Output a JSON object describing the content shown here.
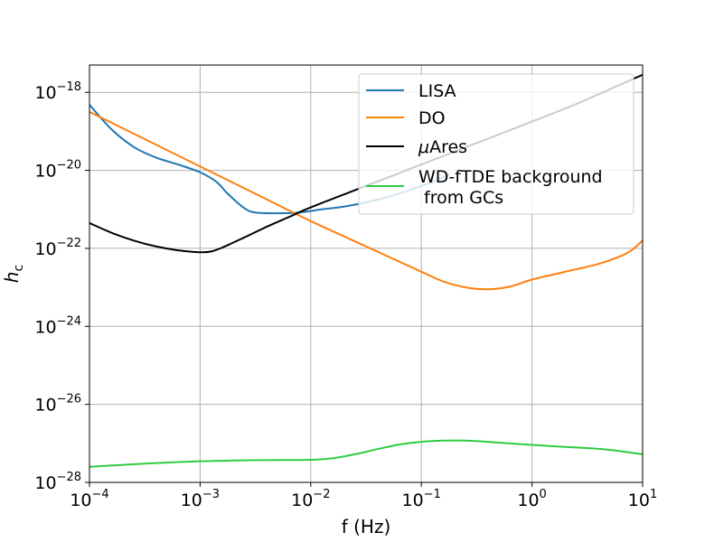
{
  "chart_data": {
    "type": "line",
    "title": "",
    "xlabel": "f (Hz)",
    "ylabel_main": "h",
    "ylabel_sub": "c",
    "xscale": "log",
    "yscale": "log",
    "xlim_exp": [
      -4,
      1
    ],
    "ylim_exp": [
      -28,
      -17.3
    ],
    "grid": true,
    "legend_position": "top-right",
    "x_ticks": [
      {
        "base": "10",
        "exp": "−4",
        "value_exp": -4
      },
      {
        "base": "10",
        "exp": "−3",
        "value_exp": -3
      },
      {
        "base": "10",
        "exp": "−2",
        "value_exp": -2
      },
      {
        "base": "10",
        "exp": "−1",
        "value_exp": -1
      },
      {
        "base": "10",
        "exp": "0",
        "value_exp": 0
      },
      {
        "base": "10",
        "exp": "1",
        "value_exp": 1
      }
    ],
    "y_ticks": [
      {
        "base": "10",
        "exp": "−18",
        "value_exp": -18
      },
      {
        "base": "10",
        "exp": "−20",
        "value_exp": -20
      },
      {
        "base": "10",
        "exp": "−22",
        "value_exp": -22
      },
      {
        "base": "10",
        "exp": "−24",
        "value_exp": -24
      },
      {
        "base": "10",
        "exp": "−26",
        "value_exp": -26
      },
      {
        "base": "10",
        "exp": "−28",
        "value_exp": -28
      }
    ],
    "series": [
      {
        "name": "LISA",
        "color": "#1f77b4",
        "points_log10": [
          [
            -4.0,
            -18.32
          ],
          [
            -3.8,
            -18.95
          ],
          [
            -3.6,
            -19.4
          ],
          [
            -3.4,
            -19.67
          ],
          [
            -3.2,
            -19.85
          ],
          [
            -3.0,
            -20.05
          ],
          [
            -2.85,
            -20.3
          ],
          [
            -2.75,
            -20.6
          ],
          [
            -2.6,
            -20.97
          ],
          [
            -2.5,
            -21.08
          ],
          [
            -2.3,
            -21.1
          ],
          [
            -2.1,
            -21.08
          ],
          [
            -1.9,
            -21.0
          ],
          [
            -1.7,
            -20.93
          ],
          [
            -1.5,
            -20.82
          ],
          [
            -1.3,
            -20.68
          ],
          [
            -1.1,
            -20.5
          ],
          [
            -1.0,
            -20.4
          ],
          [
            -0.9,
            -20.3
          ],
          [
            -0.75,
            -20.1
          ]
        ]
      },
      {
        "name": "DO",
        "color": "#ff7f0e",
        "points_log10": [
          [
            -4.0,
            -18.5
          ],
          [
            -3.5,
            -19.2
          ],
          [
            -3.0,
            -19.9
          ],
          [
            -2.5,
            -20.6
          ],
          [
            -2.0,
            -21.3
          ],
          [
            -1.5,
            -21.95
          ],
          [
            -1.0,
            -22.6
          ],
          [
            -0.8,
            -22.85
          ],
          [
            -0.6,
            -23.0
          ],
          [
            -0.4,
            -23.05
          ],
          [
            -0.2,
            -22.98
          ],
          [
            0.0,
            -22.8
          ],
          [
            0.3,
            -22.6
          ],
          [
            0.6,
            -22.4
          ],
          [
            0.8,
            -22.2
          ],
          [
            0.9,
            -22.05
          ],
          [
            1.0,
            -21.8
          ]
        ]
      },
      {
        "name": "μAres",
        "color": "#000000",
        "points_log10": [
          [
            -4.0,
            -21.35
          ],
          [
            -3.8,
            -21.6
          ],
          [
            -3.6,
            -21.8
          ],
          [
            -3.4,
            -21.95
          ],
          [
            -3.2,
            -22.05
          ],
          [
            -3.0,
            -22.1
          ],
          [
            -2.9,
            -22.08
          ],
          [
            -2.8,
            -21.98
          ],
          [
            -2.6,
            -21.72
          ],
          [
            -2.4,
            -21.45
          ],
          [
            -2.2,
            -21.2
          ],
          [
            -2.0,
            -20.95
          ],
          [
            -1.5,
            -20.4
          ],
          [
            -1.0,
            -19.85
          ],
          [
            -0.5,
            -19.3
          ],
          [
            0.0,
            -18.75
          ],
          [
            0.4,
            -18.3
          ],
          [
            0.8,
            -17.8
          ],
          [
            1.0,
            -17.55
          ]
        ]
      },
      {
        "name": "WD-fTDE background\n from GCs",
        "color": "#2ecc40",
        "points_log10": [
          [
            -4.0,
            -27.6
          ],
          [
            -3.5,
            -27.52
          ],
          [
            -3.0,
            -27.46
          ],
          [
            -2.5,
            -27.43
          ],
          [
            -2.0,
            -27.42
          ],
          [
            -1.8,
            -27.38
          ],
          [
            -1.6,
            -27.28
          ],
          [
            -1.4,
            -27.15
          ],
          [
            -1.2,
            -27.03
          ],
          [
            -1.0,
            -26.96
          ],
          [
            -0.8,
            -26.93
          ],
          [
            -0.6,
            -26.93
          ],
          [
            -0.4,
            -26.96
          ],
          [
            -0.2,
            -27.0
          ],
          [
            0.0,
            -27.04
          ],
          [
            0.3,
            -27.09
          ],
          [
            0.6,
            -27.14
          ],
          [
            0.8,
            -27.2
          ],
          [
            1.0,
            -27.28
          ]
        ]
      }
    ],
    "legend_entries": [
      {
        "label": "LISA",
        "color": "#1f77b4"
      },
      {
        "label": "DO",
        "color": "#ff7f0e"
      },
      {
        "label_greek": "μ",
        "label_rest": "Ares",
        "color": "#000000"
      },
      {
        "label_line1": "WD-fTDE background",
        "label_line2": " from GCs",
        "color": "#2ecc40"
      }
    ]
  }
}
